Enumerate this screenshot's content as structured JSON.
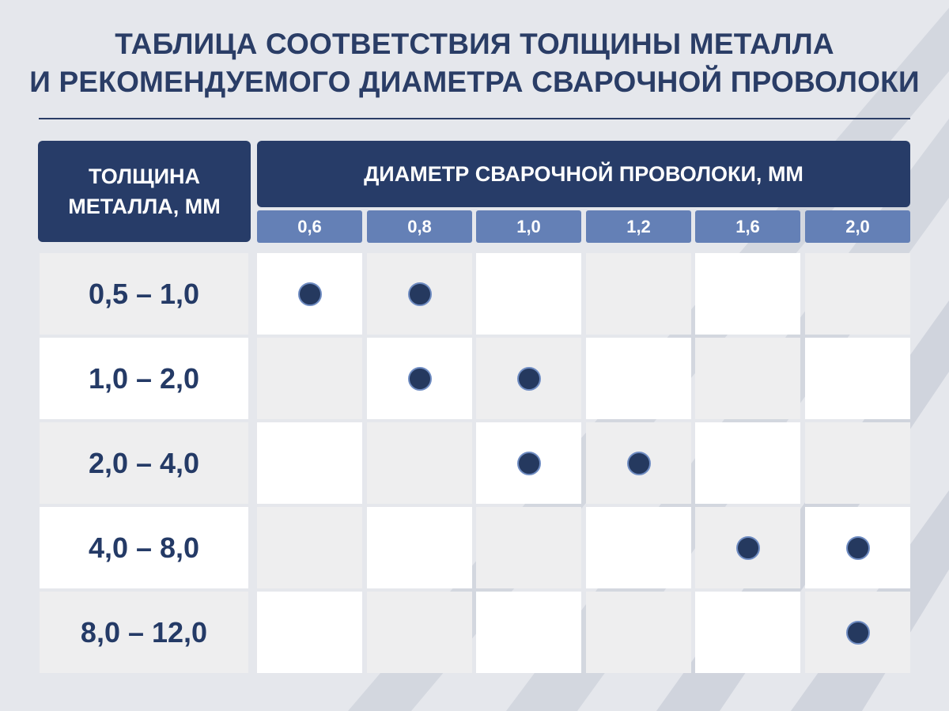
{
  "title": {
    "line1": "ТАБЛИЦА СООТВЕТСТВИЯ ТОЛЩИНЫ МЕТАЛЛА",
    "line2": "И РЕКОМЕНДУЕМОГО ДИАМЕТРА СВАРОЧНОЙ ПРОВОЛОКИ"
  },
  "header": {
    "thickness_line1": "ТОЛЩИНА",
    "thickness_line2": "МЕТАЛЛА, ММ",
    "diameter": "ДИАМЕТР СВАРОЧНОЙ ПРОВОЛОКИ, ММ"
  },
  "diameters": [
    "0,6",
    "0,8",
    "1,0",
    "1,2",
    "1,6",
    "2,0"
  ],
  "rows": [
    {
      "thickness": "0,5 – 1,0",
      "recommended": [
        true,
        true,
        false,
        false,
        false,
        false
      ]
    },
    {
      "thickness": "1,0 – 2,0",
      "recommended": [
        false,
        true,
        true,
        false,
        false,
        false
      ]
    },
    {
      "thickness": "2,0 – 4,0",
      "recommended": [
        false,
        false,
        true,
        true,
        false,
        false
      ]
    },
    {
      "thickness": "4,0 – 8,0",
      "recommended": [
        false,
        false,
        false,
        false,
        true,
        true
      ]
    },
    {
      "thickness": "8,0 – 12,0",
      "recommended": [
        false,
        false,
        false,
        false,
        false,
        true
      ]
    }
  ],
  "colors": {
    "header_dark": "#273c68",
    "header_sub": "#6480b6",
    "text_dark": "#243a66",
    "dot_fill": "#25395f",
    "dot_ring": "#6f8cc2",
    "cell_white": "#ffffff",
    "cell_gray": "#eeeeef",
    "background": "#e5e7ec"
  }
}
